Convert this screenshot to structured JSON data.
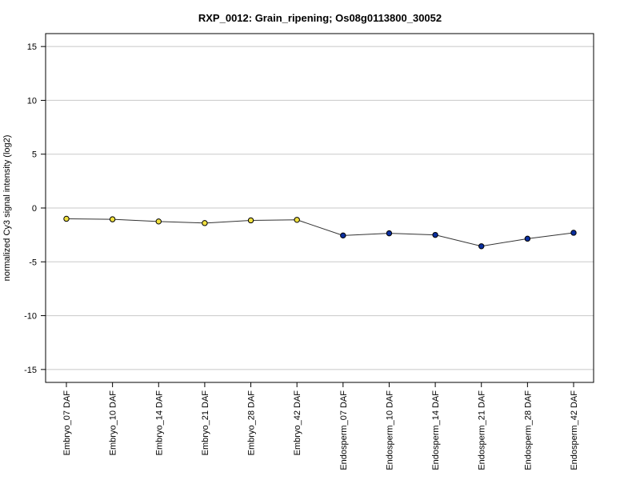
{
  "chart_data": {
    "type": "line",
    "title": "RXP_0012: Grain_ripening; Os08g0113800_30052",
    "ylabel": "normalized Cy3 signal intensity (log2)",
    "xlabel": "",
    "ylim": [
      -16.2,
      16.2
    ],
    "yticks": [
      -15,
      -10,
      -5,
      0,
      5,
      10,
      15
    ],
    "grid": true,
    "categories": [
      "Embryo_07 DAF",
      "Embryo_10 DAF",
      "Embryo_14 DAF",
      "Embryo_21 DAF",
      "Embryo_28 DAF",
      "Embryo_42 DAF",
      "Endosperm_07 DAF",
      "Endosperm_10 DAF",
      "Endosperm_14 DAF",
      "Endosperm_21 DAF",
      "Endosperm_28 DAF",
      "Endosperm_42 DAF"
    ],
    "values": [
      -1.0,
      -1.05,
      -1.25,
      -1.4,
      -1.15,
      -1.1,
      -2.55,
      -2.35,
      -2.5,
      -3.55,
      -2.85,
      -2.3
    ],
    "point_colors": [
      "#f0e040",
      "#f0e040",
      "#f0e040",
      "#f0e040",
      "#f0e040",
      "#f0e040",
      "#0a2fa0",
      "#0a2fa0",
      "#0a2fa0",
      "#0a2fa0",
      "#0a2fa0",
      "#0a2fa0"
    ],
    "line_color": "#333333",
    "grid_color": "#c8c8c8"
  }
}
